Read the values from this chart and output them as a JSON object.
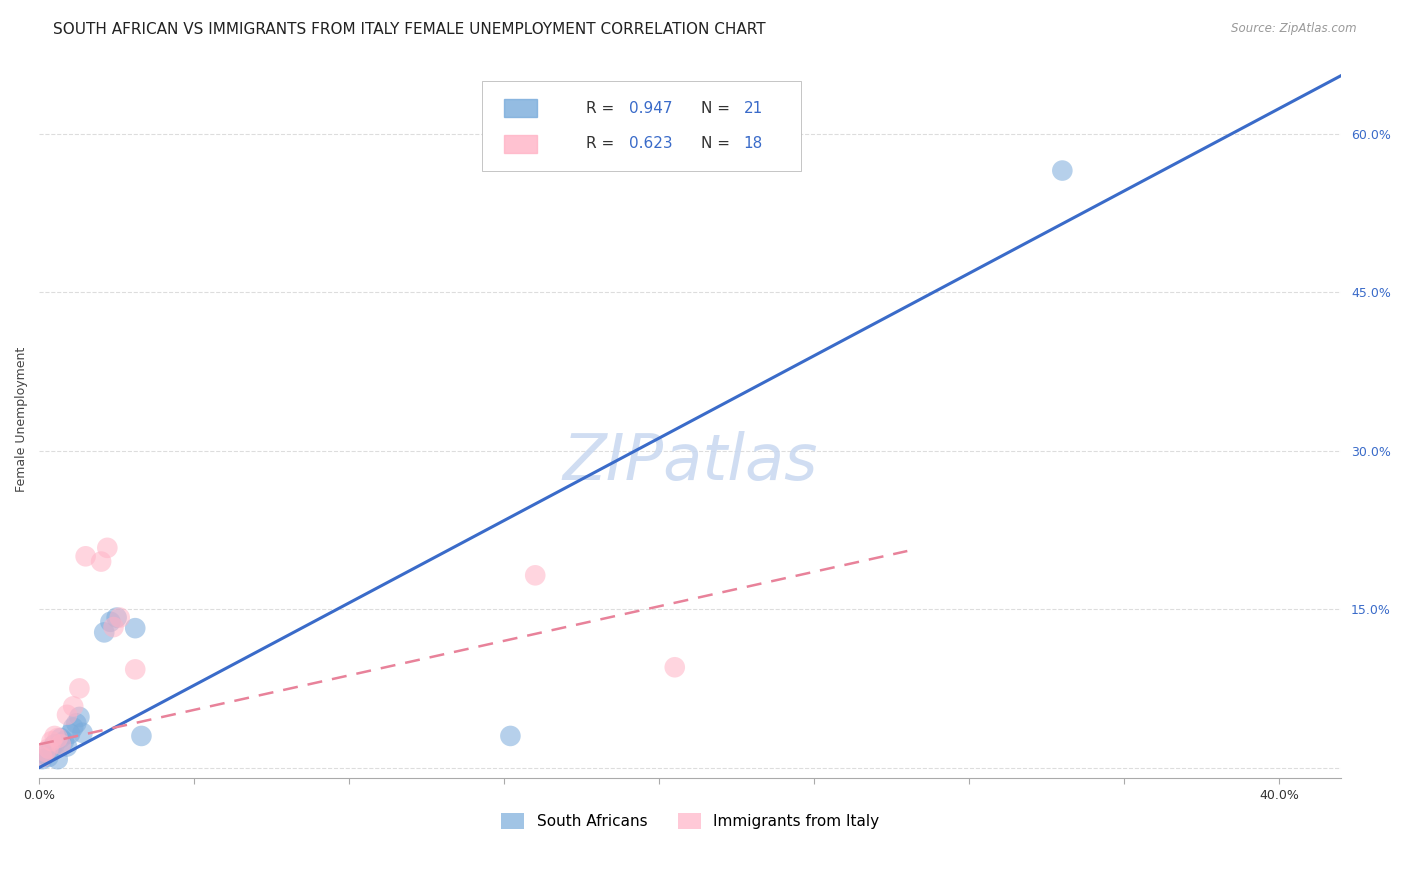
{
  "title": "SOUTH AFRICAN VS IMMIGRANTS FROM ITALY FEMALE UNEMPLOYMENT CORRELATION CHART",
  "source": "Source: ZipAtlas.com",
  "ylabel": "Female Unemployment",
  "watermark": "ZIPatlas",
  "xlim": [
    0.0,
    0.42
  ],
  "ylim": [
    -0.01,
    0.67
  ],
  "xticks": [
    0.0,
    0.05,
    0.1,
    0.15,
    0.2,
    0.25,
    0.3,
    0.35,
    0.4
  ],
  "xticklabels": [
    "0.0%",
    "",
    "",
    "",
    "",
    "",
    "",
    "",
    "40.0%"
  ],
  "yticks_right": [
    0.0,
    0.15,
    0.3,
    0.45,
    0.6
  ],
  "ytick_labels_right": [
    "",
    "15.0%",
    "30.0%",
    "45.0%",
    "60.0%"
  ],
  "blue_R": "0.947",
  "blue_N": "21",
  "pink_R": "0.623",
  "pink_N": "18",
  "blue_scatter_color": "#7AABDB",
  "pink_scatter_color": "#FFB3C6",
  "blue_line_color": "#3A6BC9",
  "pink_line_color": "#E8829A",
  "legend_R_color": "#3A6BC9",
  "legend_N_color": "#3A6BC9",
  "blue_scatter_x": [
    0.001,
    0.002,
    0.003,
    0.004,
    0.005,
    0.006,
    0.007,
    0.008,
    0.009,
    0.01,
    0.011,
    0.012,
    0.013,
    0.014,
    0.021,
    0.023,
    0.025,
    0.031,
    0.033,
    0.152,
    0.33
  ],
  "blue_scatter_y": [
    0.008,
    0.012,
    0.01,
    0.018,
    0.022,
    0.008,
    0.028,
    0.025,
    0.02,
    0.032,
    0.038,
    0.042,
    0.048,
    0.033,
    0.128,
    0.138,
    0.142,
    0.132,
    0.03,
    0.03,
    0.565
  ],
  "pink_scatter_x": [
    0.001,
    0.002,
    0.003,
    0.004,
    0.005,
    0.006,
    0.007,
    0.009,
    0.011,
    0.013,
    0.015,
    0.02,
    0.022,
    0.024,
    0.026,
    0.031,
    0.16,
    0.205
  ],
  "pink_scatter_y": [
    0.01,
    0.015,
    0.018,
    0.025,
    0.03,
    0.028,
    0.022,
    0.05,
    0.058,
    0.075,
    0.2,
    0.195,
    0.208,
    0.133,
    0.142,
    0.093,
    0.182,
    0.095
  ],
  "blue_line_x0": 0.0,
  "blue_line_x1": 0.42,
  "blue_line_y0": 0.0,
  "blue_line_y1": 0.655,
  "pink_line_x0": 0.0,
  "pink_line_x1": 0.28,
  "pink_line_y0": 0.022,
  "pink_line_y1": 0.205,
  "grid_color": "#DDDDDD",
  "background_color": "#FFFFFF",
  "title_fontsize": 11,
  "axis_label_fontsize": 9,
  "tick_fontsize": 9,
  "legend_fontsize": 11,
  "watermark_fontsize": 46,
  "watermark_color": "#C8D8F0",
  "source_fontsize": 8.5
}
